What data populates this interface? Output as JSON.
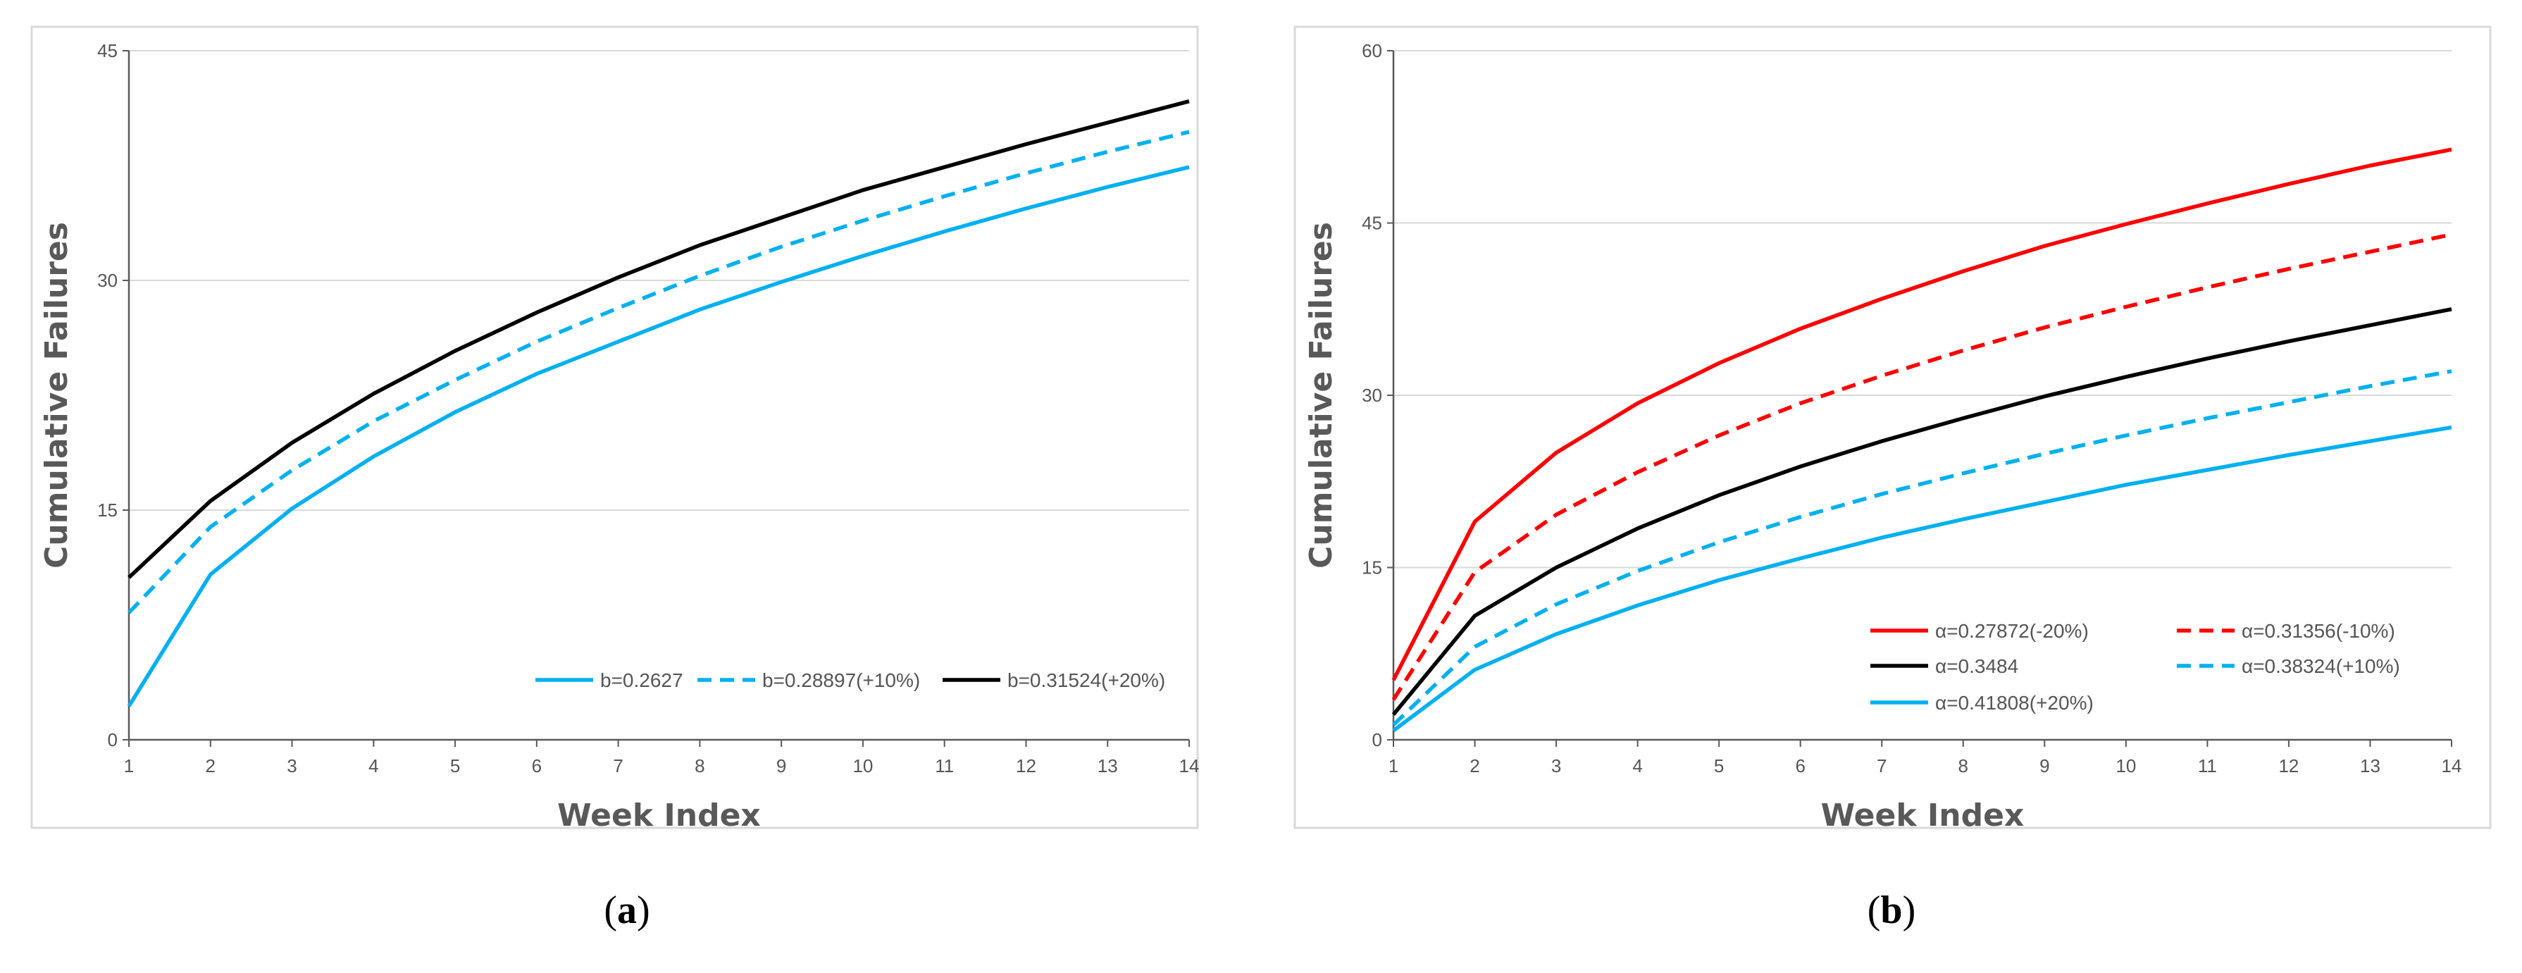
{
  "chart_data": [
    {
      "id": "a",
      "type": "line",
      "caption_label": "a",
      "caption_open": "(",
      "caption_close": ")",
      "xlabel": "Week Index",
      "ylabel": "Cumulative Failures",
      "xlim": [
        1,
        14
      ],
      "ylim": [
        0,
        45
      ],
      "x_ticks": [
        1,
        2,
        3,
        4,
        5,
        6,
        7,
        8,
        9,
        10,
        11,
        12,
        13,
        14
      ],
      "y_ticks": [
        0,
        15,
        30,
        45
      ],
      "grid": true,
      "legend_position": "bottom-right",
      "x": [
        1,
        2,
        3,
        4,
        5,
        6,
        7,
        8,
        9,
        10,
        11,
        12,
        13,
        14
      ],
      "series": [
        {
          "name": "b=0.2627",
          "color": "#00b0f0",
          "dash": "solid",
          "values": [
            2.2,
            10.8,
            15.1,
            18.5,
            21.4,
            23.9,
            26.0,
            28.1,
            29.9,
            31.6,
            33.2,
            34.7,
            36.1,
            37.4
          ]
        },
        {
          "name": "b=0.28897(+10%)",
          "color": "#00b0f0",
          "dash": "dashed",
          "values": [
            8.3,
            13.9,
            17.6,
            20.8,
            23.5,
            26.0,
            28.2,
            30.3,
            32.2,
            33.9,
            35.5,
            37.0,
            38.4,
            39.7
          ]
        },
        {
          "name": "b=0.31524(+20%)",
          "color": "#000000",
          "dash": "solid",
          "values": [
            10.6,
            15.6,
            19.4,
            22.6,
            25.4,
            27.9,
            30.2,
            32.3,
            34.1,
            35.9,
            37.4,
            38.9,
            40.3,
            41.7
          ]
        }
      ]
    },
    {
      "id": "b",
      "type": "line",
      "caption_label": "b",
      "caption_open": "(",
      "caption_close": ")",
      "xlabel": "Week Index",
      "ylabel": "Cumulative Failures",
      "xlim": [
        1,
        14
      ],
      "ylim": [
        0,
        60
      ],
      "x_ticks": [
        1,
        2,
        3,
        4,
        5,
        6,
        7,
        8,
        9,
        10,
        11,
        12,
        13,
        14
      ],
      "y_ticks": [
        0,
        15,
        30,
        45,
        60
      ],
      "grid": true,
      "legend_position": "bottom-right",
      "x": [
        1,
        2,
        3,
        4,
        5,
        6,
        7,
        8,
        9,
        10,
        11,
        12,
        13,
        14
      ],
      "series": [
        {
          "name": "α=0.27872(-20%)",
          "color": "#ff0000",
          "dash": "solid",
          "values": [
            5.2,
            19.0,
            25.0,
            29.3,
            32.8,
            35.8,
            38.4,
            40.8,
            43.0,
            44.9,
            46.7,
            48.4,
            50.0,
            51.4
          ]
        },
        {
          "name": "α=0.31356(-10%)",
          "color": "#ff0000",
          "dash": "dashed",
          "values": [
            3.5,
            14.6,
            19.6,
            23.3,
            26.5,
            29.3,
            31.7,
            33.9,
            35.9,
            37.7,
            39.4,
            41.0,
            42.5,
            44.0
          ]
        },
        {
          "name": "α=0.3484",
          "color": "#000000",
          "dash": "solid",
          "values": [
            2.2,
            10.8,
            15.0,
            18.4,
            21.3,
            23.8,
            26.0,
            28.0,
            29.9,
            31.6,
            33.2,
            34.7,
            36.1,
            37.5
          ]
        },
        {
          "name": "α=0.38324(+10%)",
          "color": "#00b0f0",
          "dash": "dashed",
          "values": [
            1.3,
            8.1,
            11.8,
            14.7,
            17.2,
            19.4,
            21.4,
            23.2,
            24.9,
            26.5,
            28.0,
            29.4,
            30.8,
            32.1
          ]
        },
        {
          "name": "α=0.41808(+20%)",
          "color": "#00b0f0",
          "dash": "solid",
          "values": [
            0.8,
            6.1,
            9.2,
            11.7,
            13.9,
            15.8,
            17.6,
            19.2,
            20.7,
            22.2,
            23.5,
            24.8,
            26.0,
            27.2
          ]
        }
      ]
    }
  ]
}
